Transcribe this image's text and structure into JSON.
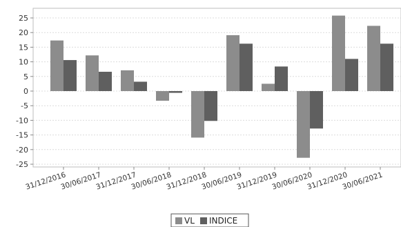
{
  "chart_data": {
    "type": "bar",
    "title": "",
    "xlabel": "",
    "ylabel": "",
    "ylim": [
      -25,
      25
    ],
    "yticks": [
      25,
      20,
      15,
      10,
      5,
      0,
      -5,
      -10,
      -15,
      -20,
      -25
    ],
    "grid": true,
    "legend_position": "bottom-center",
    "categories": [
      "31/12/2016",
      "30/06/2017",
      "31/12/2017",
      "30/06/2018",
      "31/12/2018",
      "30/06/2019",
      "31/12/2019",
      "30/06/2020",
      "31/12/2020",
      "30/06/2021"
    ],
    "series": [
      {
        "name": "VL",
        "color": "#8c8c8c",
        "values": [
          17.3,
          12.2,
          7.1,
          -3.3,
          -15.9,
          19.1,
          2.5,
          -22.8,
          25.8,
          22.3
        ]
      },
      {
        "name": "INDICE",
        "color": "#5f5f5f",
        "values": [
          10.6,
          6.6,
          3.2,
          -0.6,
          -10.2,
          16.2,
          8.4,
          -12.8,
          11.0,
          16.2
        ]
      }
    ]
  }
}
